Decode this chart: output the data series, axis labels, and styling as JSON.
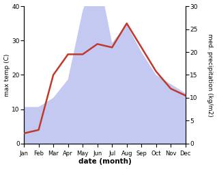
{
  "months": [
    "Jan",
    "Feb",
    "Mar",
    "Apr",
    "May",
    "Jun",
    "Jul",
    "Aug",
    "Sep",
    "Oct",
    "Nov",
    "Dec"
  ],
  "temperature": [
    3,
    4,
    20,
    26,
    26,
    29,
    28,
    35,
    28,
    21,
    16,
    14
  ],
  "precipitation": [
    8,
    8,
    10,
    14,
    29,
    38,
    22,
    26,
    20,
    15,
    13,
    11
  ],
  "temp_color": "#c0392b",
  "precip_color_fill": "#b0b8ee",
  "temp_ylim": [
    0,
    40
  ],
  "precip_ylim": [
    0,
    30
  ],
  "temp_yticks": [
    0,
    10,
    20,
    30,
    40
  ],
  "precip_yticks": [
    0,
    5,
    10,
    15,
    20,
    25,
    30
  ],
  "xlabel": "date (month)",
  "ylabel_left": "max temp (C)",
  "ylabel_right": "med. precipitation (kg/m2)",
  "bg_color": "#ffffff",
  "temp_linewidth": 1.8,
  "figsize": [
    3.18,
    2.47
  ],
  "dpi": 100
}
